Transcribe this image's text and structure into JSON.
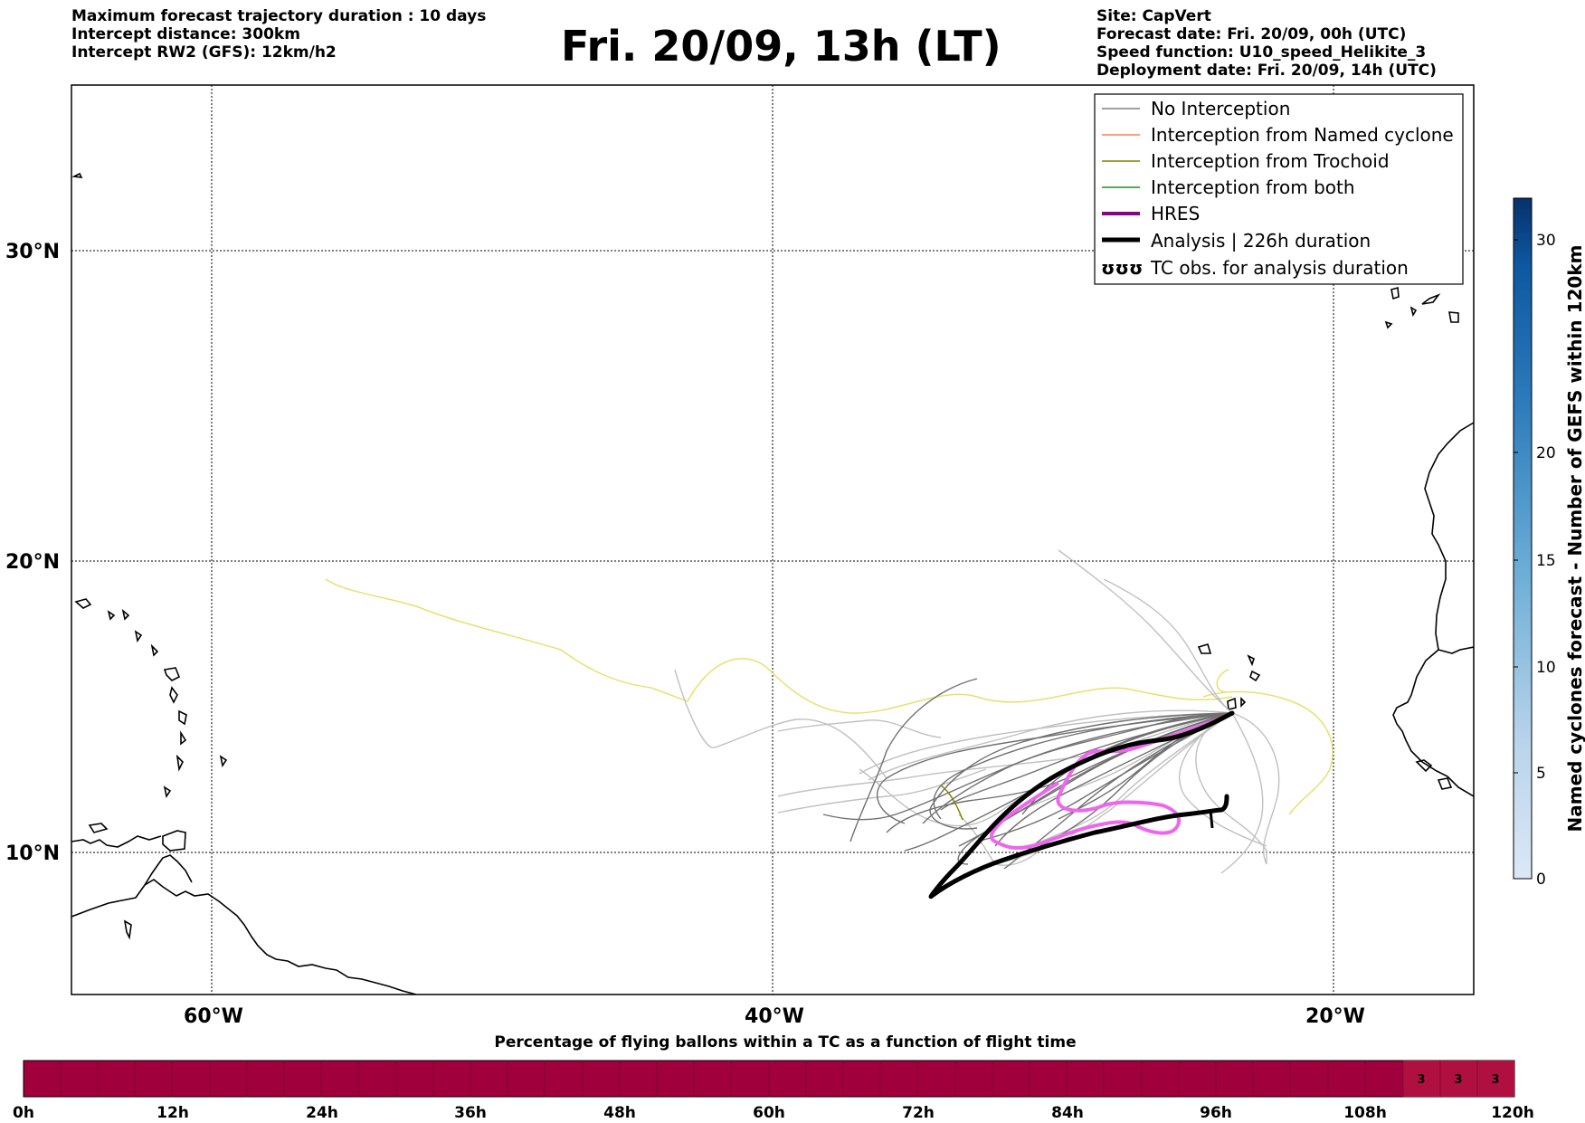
{
  "header": {
    "left_lines": [
      "Maximum forecast trajectory duration : 10 days",
      "Intercept distance: 300km",
      "Intercept RW2 (GFS):  12km/h2"
    ],
    "title": "Fri. 20/09, 13h (LT)",
    "right_lines": [
      "Site: CapVert",
      "Forecast date: Fri. 20/09, 00h (UTC)",
      "Speed function: U10_speed_Helikite_3",
      "Deployment date: Fri. 20/09, 14h (UTC)"
    ]
  },
  "map": {
    "lat_labels": [
      "30°N",
      "20°N",
      "10°N"
    ],
    "lon_labels": [
      "60°W",
      "40°W",
      "20°W"
    ],
    "legend": [
      {
        "label": "No Interception",
        "color": "#808080",
        "width": 1.5
      },
      {
        "label": "Interception from Named cyclone",
        "color": "#ff7f50",
        "width": 1.5
      },
      {
        "label": "Interception from Trochoid",
        "color": "#808000",
        "width": 1.5
      },
      {
        "label": "Interception from both",
        "color": "#228b22",
        "width": 1.5
      },
      {
        "label": "HRES",
        "color": "#8b008b",
        "width": 4
      },
      {
        "label": "Analysis | 226h duration",
        "color": "#000000",
        "width": 5
      },
      {
        "label": "TC obs. for analysis duration",
        "color": "#000000",
        "symbol": "ʊʊʊ"
      }
    ],
    "colors": {
      "no_interception": "#b8b8b8",
      "no_interception_dark": "#707070",
      "trochoid_pale": "#e8e070",
      "hres_pale": "#ee66ee",
      "analysis": "#000000"
    }
  },
  "colorbar": {
    "title": "Named cyclones forecast - Number of GEFS within 120km",
    "ticks": [
      "0",
      "5",
      "10",
      "15",
      "20",
      "30"
    ]
  },
  "flight_bar": {
    "title": "Percentage of flying ballons within a TC as a function of flight time",
    "ticks": [
      "0h",
      "12h",
      "24h",
      "36h",
      "48h",
      "60h",
      "72h",
      "84h",
      "96h",
      "108h",
      "120h"
    ],
    "values": [
      "3",
      "3",
      "3"
    ],
    "fill_color": "#a0003c"
  }
}
